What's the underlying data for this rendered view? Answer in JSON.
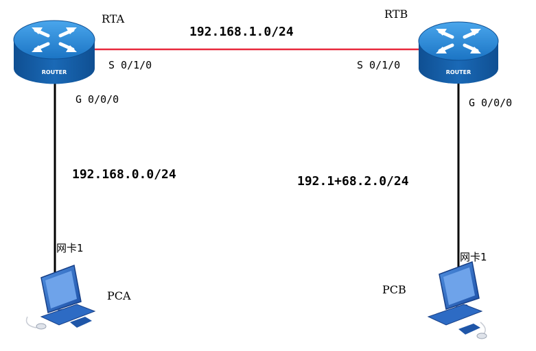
{
  "routers": {
    "rta": {
      "name": "RTA",
      "badge": "ROUTER",
      "serial_port": "S 0/1/0",
      "lan_port": "G 0/0/0"
    },
    "rtb": {
      "name": "RTB",
      "badge": "ROUTER",
      "serial_port": "S 0/1/0",
      "lan_port": "G 0/0/0"
    }
  },
  "networks": {
    "wan": "192.168.1.0/24",
    "lan_a": "192.168.0.0/24",
    "lan_b": "192.1+68.2.0/24"
  },
  "hosts": {
    "pca": {
      "name": "PCA",
      "nic_label": "网卡1"
    },
    "pcb": {
      "name": "PCB",
      "nic_label": "网卡1"
    }
  },
  "colors": {
    "wan_link": "#e8283c",
    "lan_link": "#000000",
    "router_body": "#1d6fb6",
    "pc_body": "#2d6bc4"
  }
}
